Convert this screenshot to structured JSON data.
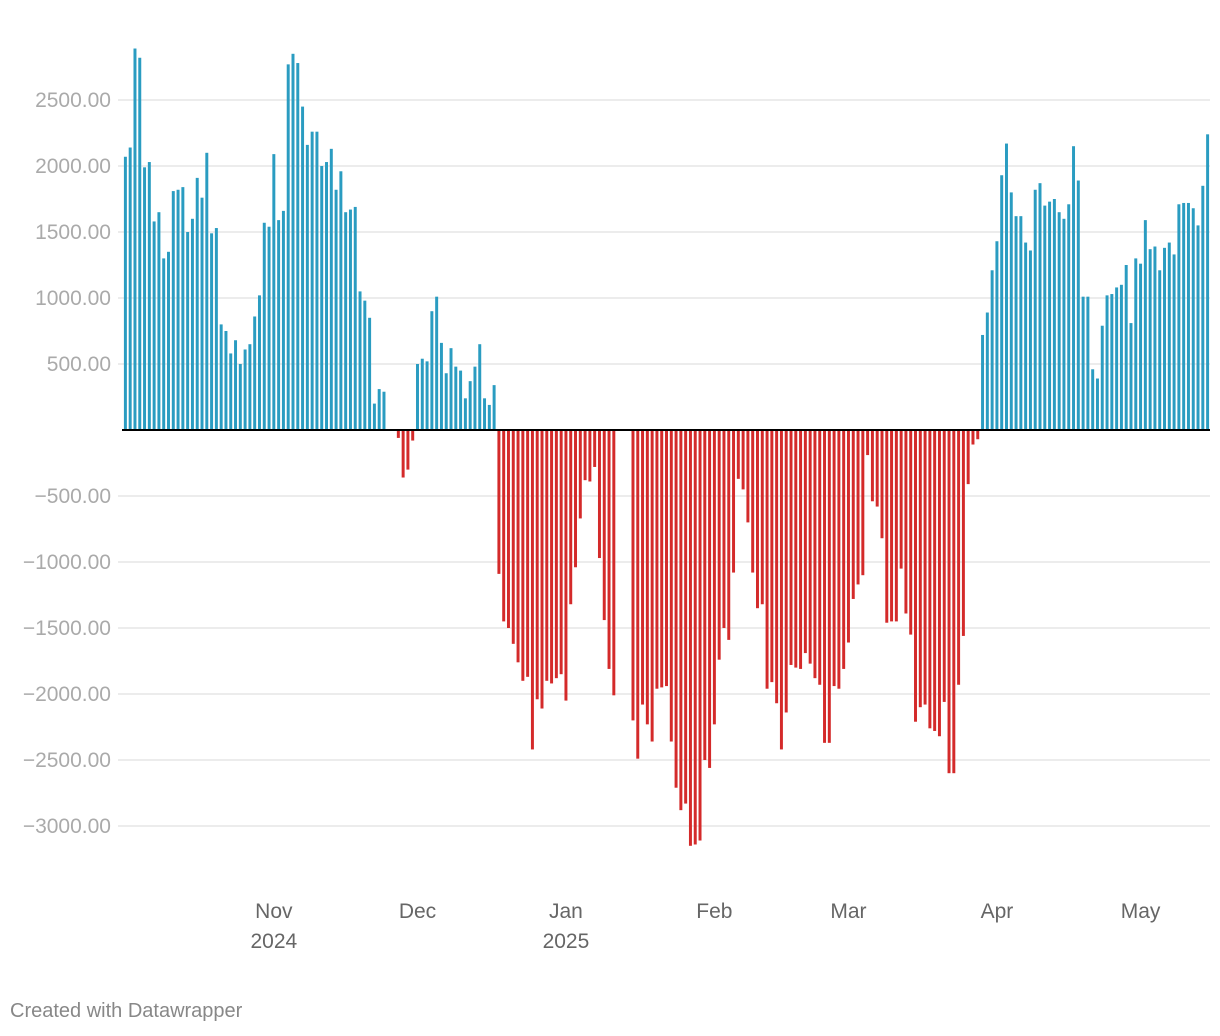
{
  "credit": "Created with Datawrapper",
  "colors": {
    "positive": "#2a9cc1",
    "negative": "#d42a2a",
    "grid": "#e6e6e6",
    "zero": "#000000",
    "tick_text": "#aaaaaa",
    "axis_text": "#666666"
  },
  "chart_data": {
    "type": "bar",
    "title": "",
    "xlabel": "",
    "ylabel": "",
    "ylim": [
      -3200,
      2900
    ],
    "yticks": [
      {
        "value": 2500,
        "label": "2500.00"
      },
      {
        "value": 2000,
        "label": "2000.00"
      },
      {
        "value": 1500,
        "label": "1500.00"
      },
      {
        "value": 1000,
        "label": "1000.00"
      },
      {
        "value": 500,
        "label": "500.00"
      },
      {
        "value": -500,
        "label": "−500.00"
      },
      {
        "value": -1000,
        "label": "−1000.00"
      },
      {
        "value": -1500,
        "label": "−1500.00"
      },
      {
        "value": -2000,
        "label": "−2000.00"
      },
      {
        "value": -2500,
        "label": "−2500.00"
      },
      {
        "value": -3000,
        "label": "−3000.00"
      }
    ],
    "xticks": [
      {
        "date": "2024-11-01",
        "label": "Nov",
        "sublabel": "2024"
      },
      {
        "date": "2024-12-01",
        "label": "Dec",
        "sublabel": ""
      },
      {
        "date": "2025-01-01",
        "label": "Jan",
        "sublabel": "2025"
      },
      {
        "date": "2025-02-01",
        "label": "Feb",
        "sublabel": ""
      },
      {
        "date": "2025-03-01",
        "label": "Mar",
        "sublabel": ""
      },
      {
        "date": "2025-04-01",
        "label": "Apr",
        "sublabel": ""
      },
      {
        "date": "2025-05-01",
        "label": "May",
        "sublabel": ""
      }
    ],
    "start_date": "2024-10-01",
    "values": [
      2070,
      2140,
      2890,
      2820,
      1990,
      2030,
      1580,
      1650,
      1300,
      1350,
      1810,
      1820,
      1840,
      1500,
      1600,
      1910,
      1760,
      2100,
      1490,
      1530,
      800,
      750,
      580,
      680,
      500,
      610,
      650,
      860,
      1020,
      1570,
      1540,
      2090,
      1590,
      1660,
      2770,
      2850,
      2780,
      2450,
      2160,
      2260,
      2260,
      2000,
      2030,
      2130,
      1820,
      1960,
      1650,
      1670,
      1690,
      1050,
      980,
      850,
      200,
      310,
      290,
      0,
      0,
      -60,
      -360,
      -300,
      -80,
      500,
      540,
      520,
      900,
      1010,
      660,
      430,
      620,
      480,
      450,
      240,
      370,
      480,
      650,
      240,
      190,
      340,
      -1090,
      -1450,
      -1500,
      -1620,
      -1760,
      -1900,
      -1870,
      -2420,
      -2040,
      -2110,
      -1900,
      -1920,
      -1880,
      -1850,
      -2050,
      -1320,
      -1040,
      -670,
      -380,
      -390,
      -280,
      -970,
      -1440,
      -1810,
      -2010,
      0,
      0,
      0,
      -2200,
      -2490,
      -2080,
      -2230,
      -2360,
      -1960,
      -1950,
      -1940,
      -2360,
      -2710,
      -2880,
      -2830,
      -3150,
      -3140,
      -3110,
      -2500,
      -2560,
      -2230,
      -1740,
      -1500,
      -1590,
      -1080,
      -370,
      -450,
      -700,
      -1080,
      -1350,
      -1320,
      -1960,
      -1910,
      -2070,
      -2420,
      -2140,
      -1780,
      -1800,
      -1810,
      -1690,
      -1770,
      -1880,
      -1930,
      -2370,
      -2370,
      -1940,
      -1960,
      -1810,
      -1610,
      -1280,
      -1170,
      -1100,
      -190,
      -540,
      -580,
      -820,
      -1460,
      -1450,
      -1450,
      -1050,
      -1390,
      -1550,
      -2210,
      -2100,
      -2080,
      -2260,
      -2280,
      -2320,
      -2060,
      -2600,
      -2600,
      -1930,
      -1560,
      -410,
      -110,
      -70,
      720,
      890,
      1210,
      1430,
      1930,
      2170,
      1800,
      1620,
      1620,
      1420,
      1360,
      1820,
      1870,
      1700,
      1730,
      1750,
      1650,
      1600,
      1710,
      2150,
      1890,
      1010,
      1010,
      460,
      390,
      790,
      1020,
      1030,
      1080,
      1100,
      1250,
      810,
      1300,
      1260,
      1590,
      1370,
      1390,
      1210,
      1380,
      1420,
      1330,
      1710,
      1720,
      1720,
      1680,
      1550,
      1850,
      2240
    ]
  }
}
